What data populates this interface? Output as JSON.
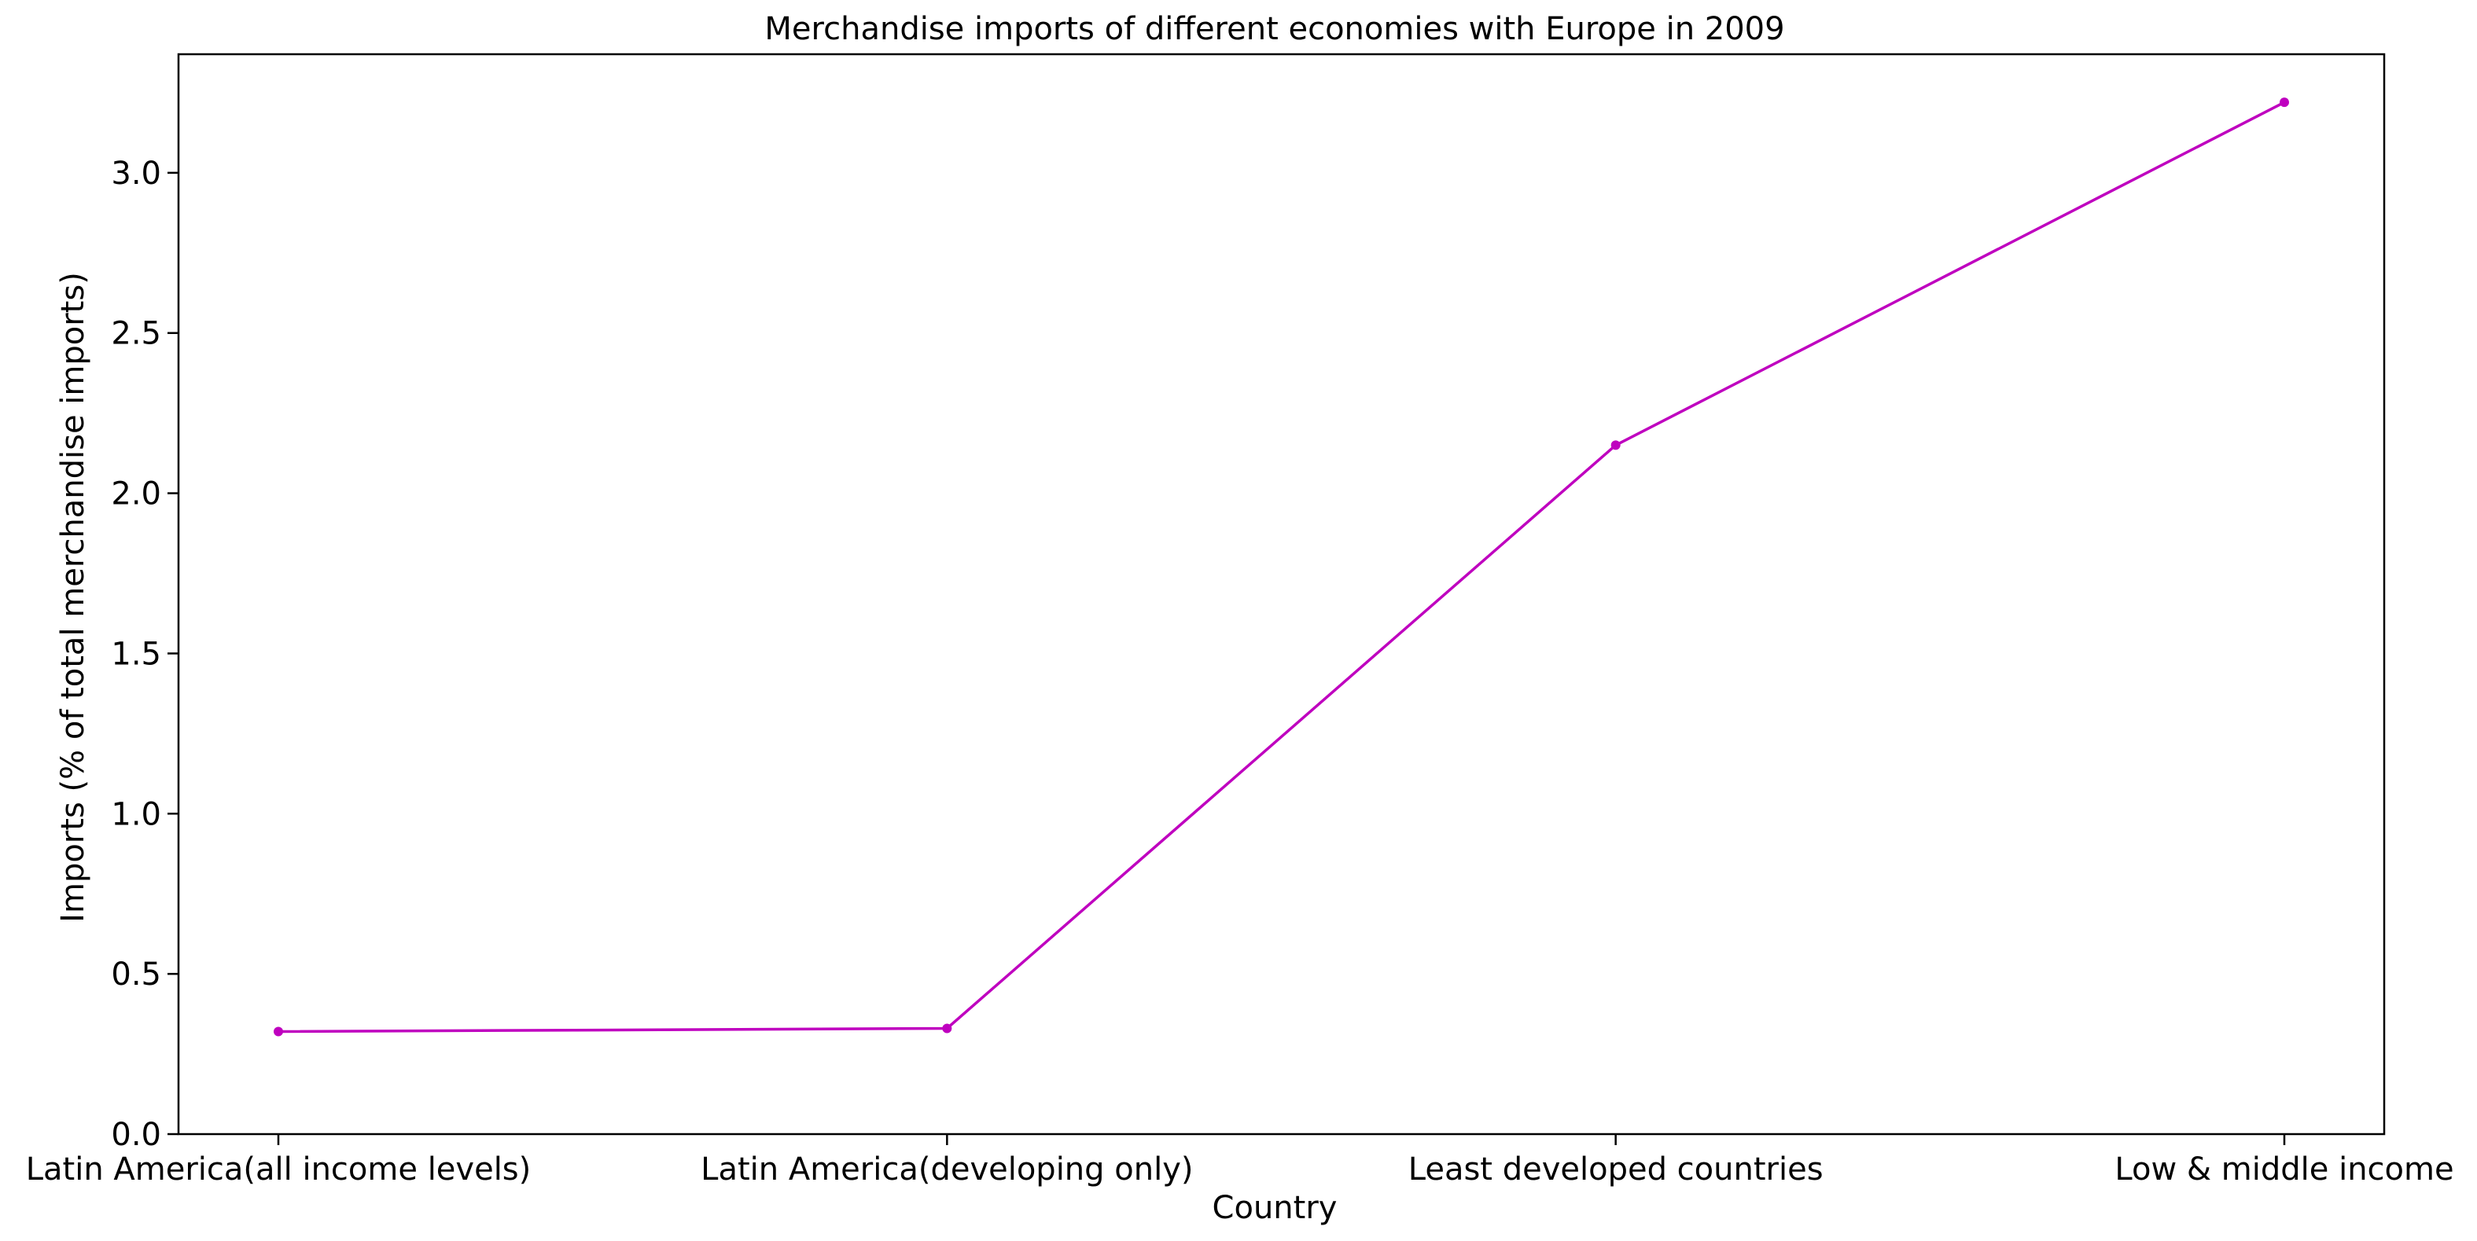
{
  "chart_data": {
    "type": "line",
    "title": "Merchandise imports of different economies with Europe in 2009",
    "xlabel": "Country",
    "ylabel": "Imports (% of total merchandise imports)",
    "categories": [
      "Latin America(all income levels)",
      "Latin America(developing only)",
      "Least developed countries",
      "Low & middle income"
    ],
    "series": [
      {
        "values": [
          0.32,
          0.33,
          2.15,
          3.22
        ],
        "color": "#bf00bf",
        "marker": "circle"
      }
    ],
    "ylim": [
      0,
      3.37
    ],
    "yticks": [
      "0.0",
      "0.5",
      "1.0",
      "1.5",
      "2.0",
      "2.5",
      "3.0"
    ],
    "ytick_values": [
      0,
      0.5,
      1.0,
      1.5,
      2.0,
      2.5,
      3.0
    ],
    "grid": false,
    "legend": "none"
  }
}
